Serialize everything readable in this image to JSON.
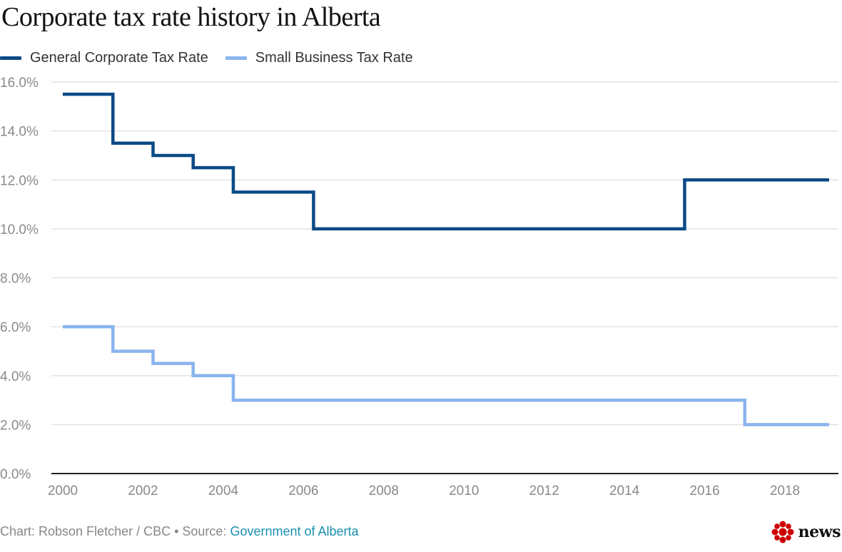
{
  "title": "Corporate tax rate history in Alberta",
  "footer": {
    "credit": "Chart: Robson Fletcher / CBC • Source: ",
    "source_link": "Government of Alberta"
  },
  "brand": {
    "name": "news",
    "icon": "cbc-gem-icon",
    "color": "#cc0000"
  },
  "chart_data": {
    "type": "line",
    "step": true,
    "title": "Corporate tax rate history in Alberta",
    "xlabel": "",
    "ylabel": "",
    "xlim": [
      2000,
      2019.2
    ],
    "ylim": [
      0,
      16
    ],
    "x_ticks": [
      2000,
      2002,
      2004,
      2006,
      2008,
      2010,
      2012,
      2014,
      2016,
      2018
    ],
    "y_ticks": [
      0,
      2,
      4,
      6,
      8,
      10,
      12,
      14,
      16
    ],
    "y_tick_labels": [
      "0.0%",
      "2.0%",
      "4.0%",
      "6.0%",
      "8.0%",
      "10.0%",
      "12.0%",
      "14.0%",
      "16.0%"
    ],
    "grid": true,
    "legend_position": "top-left",
    "series": [
      {
        "name": "General Corporate Tax Rate",
        "color": "#0c4a86",
        "points": [
          [
            2000.0,
            15.5
          ],
          [
            2001.25,
            13.5
          ],
          [
            2002.25,
            13.0
          ],
          [
            2003.25,
            12.5
          ],
          [
            2004.25,
            11.5
          ],
          [
            2006.25,
            10.0
          ],
          [
            2015.5,
            12.0
          ],
          [
            2019.1,
            12.0
          ]
        ]
      },
      {
        "name": "Small Business Tax Rate",
        "color": "#8ab4ee",
        "points": [
          [
            2000.0,
            6.0
          ],
          [
            2001.25,
            5.0
          ],
          [
            2002.25,
            4.5
          ],
          [
            2003.25,
            4.0
          ],
          [
            2004.25,
            3.0
          ],
          [
            2017.0,
            2.0
          ],
          [
            2019.1,
            2.0
          ]
        ]
      }
    ]
  }
}
